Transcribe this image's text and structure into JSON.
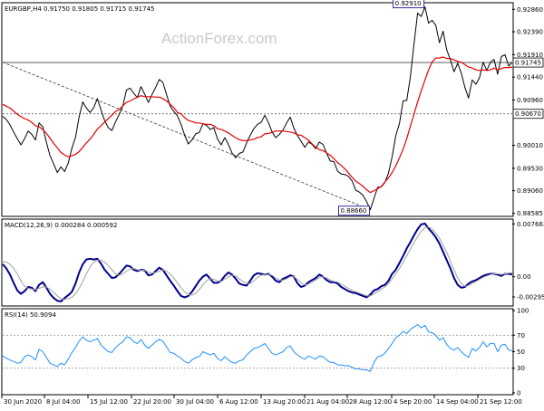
{
  "chart_data": [
    {
      "type": "line",
      "panel": "price",
      "symbol_info": "EURGBP,H4  0.91750 0.91805 0.91715 0.91745",
      "watermark": "ActionForex.com",
      "ylim": [
        0.8856,
        0.9296
      ],
      "y_ticks": [
        "0.92860",
        "0.92390",
        "0.91910",
        "0.91440",
        "0.90960",
        "0.90010",
        "0.89530",
        "0.89060",
        "0.88585"
      ],
      "y_tick_values": [
        0.9286,
        0.9239,
        0.9191,
        0.9144,
        0.9096,
        0.9001,
        0.8953,
        0.8906,
        0.88585
      ],
      "annotations": [
        {
          "label": "0.92910",
          "x_index": 116,
          "value": 0.9291
        },
        {
          "label": "0.88660",
          "x_index": 101,
          "value": 0.8866
        }
      ],
      "horizontal_lines": [
        {
          "label": "0.91745",
          "value": 0.91745,
          "color": "#000000",
          "style": "solid"
        },
        {
          "label": "0.90670",
          "value": 0.9067,
          "color": "#000000",
          "style": "dotted"
        }
      ],
      "trendline": {
        "from": {
          "x_index": 0,
          "value": 0.9175
        },
        "to": {
          "x_index": 101,
          "value": 0.8866
        },
        "style": "dashed"
      },
      "series": [
        {
          "name": "",
          "color": "#000000",
          "values": [
            0.9062,
            0.9055,
            0.9044,
            0.9029,
            0.9015,
            0.9002,
            0.9015,
            0.9031,
            0.9024,
            0.9012,
            0.9048,
            0.904,
            0.9007,
            0.8979,
            0.8962,
            0.8944,
            0.8956,
            0.8946,
            0.8964,
            0.8995,
            0.9018,
            0.9061,
            0.9092,
            0.9079,
            0.907,
            0.908,
            0.9099,
            0.9075,
            0.9053,
            0.9038,
            0.9032,
            0.905,
            0.9066,
            0.9084,
            0.9117,
            0.9121,
            0.911,
            0.9101,
            0.9124,
            0.9108,
            0.9091,
            0.9107,
            0.9122,
            0.9139,
            0.9133,
            0.9108,
            0.9083,
            0.9072,
            0.9063,
            0.9045,
            0.9022,
            0.9004,
            0.9012,
            0.9025,
            0.9028,
            0.9046,
            0.9043,
            0.9034,
            0.9038,
            0.9015,
            0.9002,
            0.9017,
            0.9003,
            0.8985,
            0.8975,
            0.8984,
            0.8987,
            0.9006,
            0.9022,
            0.9036,
            0.9045,
            0.9049,
            0.9064,
            0.9049,
            0.9029,
            0.9017,
            0.9024,
            0.9033,
            0.9048,
            0.906,
            0.9037,
            0.9021,
            0.9009,
            0.8997,
            0.9008,
            0.9003,
            0.8994,
            0.9008,
            0.9003,
            0.8984,
            0.8968,
            0.8967,
            0.8947,
            0.8941,
            0.894,
            0.8936,
            0.8926,
            0.8907,
            0.8903,
            0.8896,
            0.8883,
            0.8866,
            0.889,
            0.8913,
            0.8914,
            0.8923,
            0.8943,
            0.8977,
            0.9021,
            0.9047,
            0.9094,
            0.9095,
            0.9144,
            0.9213,
            0.9278,
            0.9271,
            0.9291,
            0.9257,
            0.9263,
            0.9252,
            0.9216,
            0.924,
            0.9201,
            0.918,
            0.9155,
            0.9173,
            0.9152,
            0.9122,
            0.91,
            0.9138,
            0.9129,
            0.9143,
            0.9175,
            0.9158,
            0.9175,
            0.9181,
            0.915,
            0.9187,
            0.9191,
            0.9167,
            0.9175
          ]
        },
        {
          "name": "",
          "color": "#e40000",
          "values": [
            0.9087,
            0.9083,
            0.9079,
            0.9073,
            0.9066,
            0.9061,
            0.9057,
            0.9054,
            0.9049,
            0.9042,
            0.904,
            0.9034,
            0.9026,
            0.9016,
            0.9005,
            0.8996,
            0.8986,
            0.8981,
            0.8977,
            0.8979,
            0.8982,
            0.8988,
            0.8997,
            0.9006,
            0.9014,
            0.9024,
            0.9035,
            0.9042,
            0.905,
            0.9057,
            0.9064,
            0.9072,
            0.9076,
            0.9084,
            0.9091,
            0.9094,
            0.9098,
            0.9102,
            0.9105,
            0.9103,
            0.9103,
            0.9103,
            0.9102,
            0.9102,
            0.9099,
            0.9094,
            0.9087,
            0.908,
            0.907,
            0.9067,
            0.9059,
            0.9053,
            0.9051,
            0.9048,
            0.9048,
            0.9046,
            0.9045,
            0.9045,
            0.9042,
            0.9036,
            0.9034,
            0.9031,
            0.9027,
            0.9022,
            0.9017,
            0.9013,
            0.9011,
            0.9011,
            0.9012,
            0.9014,
            0.9017,
            0.9019,
            0.9025,
            0.9026,
            0.9028,
            0.9031,
            0.9031,
            0.9031,
            0.903,
            0.9029,
            0.9027,
            0.9023,
            0.9022,
            0.9017,
            0.9012,
            0.9004,
            0.8997,
            0.8992,
            0.899,
            0.8985,
            0.898,
            0.8973,
            0.8965,
            0.8959,
            0.8952,
            0.8943,
            0.8934,
            0.8926,
            0.8921,
            0.8915,
            0.8908,
            0.8902,
            0.8906,
            0.891,
            0.8915,
            0.8924,
            0.8933,
            0.8944,
            0.8958,
            0.8975,
            0.8993,
            0.9015,
            0.9041,
            0.9066,
            0.9092,
            0.9115,
            0.9138,
            0.9159,
            0.9176,
            0.9184,
            0.9184,
            0.9186,
            0.9183,
            0.9183,
            0.918,
            0.9177,
            0.9175,
            0.917,
            0.9165,
            0.9163,
            0.9159,
            0.9158,
            0.9159,
            0.9158,
            0.9159,
            0.9163,
            0.9159,
            0.9162,
            0.9164,
            0.9164,
            0.9165
          ]
        }
      ]
    },
    {
      "type": "line",
      "panel": "macd",
      "label": "MACD(12,26,9) 0.000284 0.000592",
      "ylim": [
        -0.004,
        0.0081
      ],
      "y_ticks": [
        "0.007663",
        "0.00",
        "-0.002952"
      ],
      "y_tick_values": [
        0.007663,
        0.0,
        -0.002952
      ],
      "series": [
        {
          "name": "",
          "color": "#00008b",
          "values": [
            0.0018,
            0.0012,
            0.0003,
            -0.0009,
            -0.002,
            -0.0025,
            -0.0021,
            -0.0015,
            -0.0016,
            -0.0021,
            -0.0012,
            -0.0008,
            -0.0016,
            -0.0025,
            -0.0031,
            -0.0035,
            -0.0036,
            -0.0031,
            -0.0027,
            -0.0022,
            -0.001,
            0.0006,
            0.0018,
            0.0025,
            0.0026,
            0.0025,
            0.0026,
            0.0019,
            0.001,
            0.0004,
            -0.0002,
            -0.0001,
            0.0004,
            0.001,
            0.0016,
            0.0015,
            0.001,
            0.0008,
            0.001,
            0.0009,
            0.0002,
            0.0003,
            0.0008,
            0.0013,
            0.001,
            0.0002,
            -0.0006,
            -0.0013,
            -0.0021,
            -0.0028,
            -0.003,
            -0.0028,
            -0.0022,
            -0.0014,
            -0.0006,
            0.0,
            0.0003,
            -0.0003,
            -0.0009,
            -0.0009,
            -0.0006,
            0.0001,
            0.0006,
            0.0003,
            -0.0003,
            -0.001,
            -0.0012,
            -0.0013,
            -0.0006,
            0.0002,
            0.0005,
            0.0004,
            0.0003,
            0.0004,
            0.0,
            -0.0006,
            -0.0008,
            -0.0003,
            -0.0001,
            0.0002,
            0.0,
            -0.001,
            -0.0015,
            -0.0013,
            -0.0008,
            -0.0005,
            -0.0002,
            0.0003,
            0.0,
            -0.0005,
            -0.0008,
            -0.0008,
            -0.001,
            -0.0015,
            -0.0018,
            -0.0021,
            -0.0023,
            -0.0024,
            -0.0026,
            -0.0028,
            -0.003,
            -0.0026,
            -0.002,
            -0.0018,
            -0.0014,
            -0.0012,
            -0.0006,
            0.0004,
            0.001,
            0.002,
            0.003,
            0.0041,
            0.005,
            0.006,
            0.0069,
            0.0076,
            0.0077,
            0.007,
            0.0064,
            0.0057,
            0.0048,
            0.0036,
            0.0024,
            0.0012,
            -0.0002,
            -0.0012,
            -0.0016,
            -0.0015,
            -0.001,
            -0.0007,
            -0.0005,
            -0.0002,
            0.0001,
            0.0003,
            0.0004,
            0.0004,
            0.0003,
            0.0001,
            0.0004,
            0.0004,
            0.0003
          ]
        },
        {
          "name": "",
          "color": "#a0a0a0",
          "values": [
            0.0022,
            0.0021,
            0.0018,
            0.0012,
            0.0004,
            -0.0006,
            -0.0014,
            -0.0017,
            -0.0018,
            -0.0019,
            -0.0017,
            -0.0015,
            -0.0015,
            -0.0018,
            -0.0023,
            -0.0028,
            -0.0032,
            -0.0033,
            -0.0032,
            -0.003,
            -0.0025,
            -0.0017,
            -0.0007,
            0.0004,
            0.0014,
            0.0021,
            0.0024,
            0.0024,
            0.0021,
            0.0016,
            0.001,
            0.0004,
            0.0002,
            0.0004,
            0.0008,
            0.0011,
            0.0012,
            0.001,
            0.0009,
            0.0009,
            0.0007,
            0.0005,
            0.0006,
            0.0008,
            0.001,
            0.0008,
            0.0004,
            -0.0002,
            -0.0009,
            -0.0016,
            -0.0022,
            -0.0026,
            -0.0027,
            -0.0024,
            -0.0019,
            -0.0012,
            -0.0006,
            -0.0003,
            -0.0004,
            -0.0006,
            -0.0007,
            -0.0004,
            0.0,
            0.0002,
            0.0001,
            -0.0003,
            -0.0007,
            -0.001,
            -0.001,
            -0.0006,
            -0.0001,
            0.0002,
            0.0003,
            0.0003,
            0.0002,
            -0.0002,
            -0.0005,
            -0.0005,
            -0.0003,
            0.0,
            0.0,
            -0.0004,
            -0.0009,
            -0.0012,
            -0.0011,
            -0.0008,
            -0.0005,
            -0.0001,
            0.0,
            -0.0002,
            -0.0005,
            -0.0007,
            -0.0008,
            -0.0011,
            -0.0014,
            -0.0017,
            -0.002,
            -0.0022,
            -0.0024,
            -0.0026,
            -0.0028,
            -0.0028,
            -0.0025,
            -0.0022,
            -0.0018,
            -0.0015,
            -0.001,
            -0.0003,
            0.0004,
            0.0012,
            0.0021,
            0.003,
            0.004,
            0.0049,
            0.0058,
            0.0066,
            0.0071,
            0.0072,
            0.0069,
            0.0063,
            0.0056,
            0.0046,
            0.0035,
            0.0023,
            0.001,
            -0.0002,
            -0.001,
            -0.0014,
            -0.0013,
            -0.001,
            -0.0007,
            -0.0004,
            -0.0001,
            0.0001,
            0.0003,
            0.0004,
            0.0004,
            0.0003,
            0.0004,
            0.0005,
            0.0006
          ]
        }
      ]
    },
    {
      "type": "line",
      "panel": "rsi",
      "label": "RSI(14) 50.9094",
      "ylim": [
        0,
        100
      ],
      "y_ticks": [
        "100",
        "70",
        "50",
        "30",
        "0"
      ],
      "y_tick_values": [
        100,
        70,
        50,
        30,
        0
      ],
      "levels": [
        70,
        30
      ],
      "series": [
        {
          "name": "",
          "color": "#1e90ff",
          "values": [
            45,
            42,
            40,
            38,
            36,
            37,
            44,
            46,
            44,
            40,
            53,
            50,
            43,
            36,
            34,
            32,
            36,
            34,
            41,
            49,
            55,
            63,
            68,
            64,
            62,
            64,
            66,
            58,
            54,
            50,
            49,
            55,
            59,
            62,
            68,
            67,
            62,
            60,
            65,
            58,
            54,
            58,
            62,
            65,
            63,
            56,
            49,
            48,
            45,
            42,
            38,
            36,
            40,
            43,
            44,
            50,
            48,
            46,
            48,
            42,
            39,
            44,
            40,
            37,
            36,
            39,
            40,
            46,
            50,
            54,
            55,
            57,
            60,
            54,
            48,
            46,
            48,
            50,
            55,
            57,
            50,
            46,
            43,
            41,
            45,
            43,
            41,
            45,
            44,
            40,
            37,
            37,
            34,
            34,
            33,
            33,
            31,
            29,
            29,
            28,
            28,
            26,
            37,
            44,
            45,
            48,
            54,
            60,
            67,
            70,
            75,
            72,
            77,
            80,
            83,
            79,
            82,
            74,
            73,
            70,
            64,
            67,
            59,
            54,
            52,
            55,
            50,
            46,
            43,
            54,
            51,
            55,
            62,
            56,
            60,
            60,
            50,
            58,
            59,
            52,
            51
          ]
        }
      ]
    }
  ],
  "x_axis": {
    "tick_labels": [
      "30 Jun 2020",
      "8 Jul 04:00",
      "15 Jul 12:00",
      "22 Jul 20:00",
      "30 Jul 04:00",
      "6 Aug 12:00",
      "13 Aug 20:00",
      "21 Aug 04:00",
      "28 Aug 12:00",
      "4 Sep 20:00",
      "14 Sep 04:00",
      "21 Sep 12:00"
    ]
  },
  "colors": {
    "price": "#000000",
    "ma": "#e40000",
    "macd": "#00008b",
    "signal": "#a0a0a0",
    "rsi": "#1e90ff",
    "frame": "#000000"
  }
}
